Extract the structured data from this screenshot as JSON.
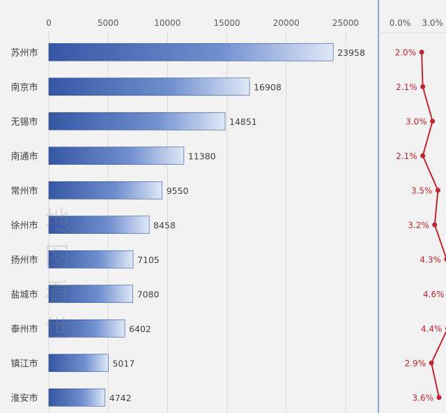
{
  "chart_data": [
    {
      "type": "bar",
      "orientation": "horizontal",
      "categories": [
        "苏州市",
        "南京市",
        "无锡市",
        "南通市",
        "常州市",
        "徐州市",
        "扬州市",
        "盐城市",
        "泰州市",
        "镇江市",
        "淮安市"
      ],
      "values": [
        23958,
        16908,
        14851,
        11380,
        9550,
        8458,
        7105,
        7080,
        6402,
        5017,
        4742
      ],
      "x_ticks": [
        "0",
        "5000",
        "10000",
        "15000",
        "20000",
        "25000"
      ],
      "xlim": [
        0,
        27000
      ],
      "grid": true,
      "colors": {
        "bar_dark": "#3556a3",
        "bar_light": "#dfe8f7",
        "text": "#404040",
        "grid": "#d9d9d9"
      }
    },
    {
      "type": "line",
      "orientation": "vertical",
      "categories": [
        "苏州市",
        "南京市",
        "无锡市",
        "南通市",
        "常州市",
        "徐州市",
        "扬州市",
        "盐城市",
        "泰州市",
        "镇江市",
        "淮安市"
      ],
      "values": [
        2.0,
        2.1,
        3.0,
        2.1,
        3.5,
        3.2,
        4.3,
        4.6,
        4.4,
        2.9,
        3.6
      ],
      "labels": [
        "2.0%",
        "2.1%",
        "3.0%",
        "2.1%",
        "3.5%",
        "3.2%",
        "4.3%",
        "4.6%",
        "4.4%",
        "2.9%",
        "3.6%"
      ],
      "x_ticks": [
        "0.0%",
        "3.0%"
      ],
      "xlim": [
        0.0,
        4.5
      ],
      "colors": {
        "line": "#c0262d",
        "label": "#c0262d",
        "divider": "#4a6fb5"
      }
    }
  ],
  "watermark": "地图看世"
}
